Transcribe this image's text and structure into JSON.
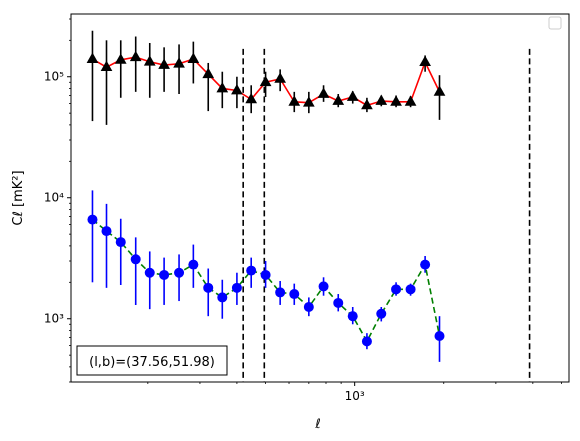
{
  "chart_data": {
    "type": "line",
    "xlabel": "ℓ",
    "ylabel": "Cℓ  [mK²]",
    "xscale": "log",
    "yscale": "log",
    "xlim": [
      110,
      5300
    ],
    "ylim": [
      300,
      330000
    ],
    "xticks": [
      {
        "value": 1000,
        "label": "10³"
      }
    ],
    "yticks": [
      {
        "value": 1000,
        "label": "10³"
      },
      {
        "value": 10000,
        "label": "10⁴"
      },
      {
        "value": 100000,
        "label": "10⁵"
      }
    ],
    "grid": false,
    "legend": "top-right (empty)",
    "annotation": "(l,b)=(37.56,51.98)",
    "vlines": [
      420,
      495,
      3900
    ],
    "series": [
      {
        "marker": "triangle",
        "marker_color": "#000000",
        "line_color": "#ff0000",
        "linestyle": "solid",
        "errorbar_color": "#000000",
        "points": [
          {
            "x": 130,
            "y": 140000,
            "lo": 43000,
            "hi": 240000
          },
          {
            "x": 145,
            "y": 120000,
            "lo": 40000,
            "hi": 200000
          },
          {
            "x": 162,
            "y": 138000,
            "lo": 67000,
            "hi": 200000
          },
          {
            "x": 182,
            "y": 145000,
            "lo": 75000,
            "hi": 215000
          },
          {
            "x": 203,
            "y": 133000,
            "lo": 67000,
            "hi": 190000
          },
          {
            "x": 227,
            "y": 125000,
            "lo": 75000,
            "hi": 175000
          },
          {
            "x": 255,
            "y": 128000,
            "lo": 72000,
            "hi": 185000
          },
          {
            "x": 285,
            "y": 140000,
            "lo": 88000,
            "hi": 195000
          },
          {
            "x": 320,
            "y": 105000,
            "lo": 52000,
            "hi": 130000
          },
          {
            "x": 357,
            "y": 80000,
            "lo": 55000,
            "hi": 110000
          },
          {
            "x": 400,
            "y": 77000,
            "lo": 55000,
            "hi": 100000
          },
          {
            "x": 447,
            "y": 65000,
            "lo": 50000,
            "hi": 85000
          },
          {
            "x": 500,
            "y": 90000,
            "lo": 68000,
            "hi": 110000
          },
          {
            "x": 560,
            "y": 96000,
            "lo": 76000,
            "hi": 115000
          },
          {
            "x": 625,
            "y": 62000,
            "lo": 51000,
            "hi": 75000
          },
          {
            "x": 700,
            "y": 61000,
            "lo": 50000,
            "hi": 75000
          },
          {
            "x": 785,
            "y": 72000,
            "lo": 62000,
            "hi": 85000
          },
          {
            "x": 880,
            "y": 63000,
            "lo": 56000,
            "hi": 72000
          },
          {
            "x": 985,
            "y": 68000,
            "lo": 60000,
            "hi": 76000
          },
          {
            "x": 1100,
            "y": 58000,
            "lo": 51000,
            "hi": 67000
          },
          {
            "x": 1230,
            "y": 63000,
            "lo": 57000,
            "hi": 70000
          },
          {
            "x": 1380,
            "y": 62000,
            "lo": 56000,
            "hi": 70000
          },
          {
            "x": 1545,
            "y": 62000,
            "lo": 56000,
            "hi": 69000
          },
          {
            "x": 1730,
            "y": 132000,
            "lo": 110000,
            "hi": 150000
          },
          {
            "x": 1935,
            "y": 75000,
            "lo": 44000,
            "hi": 103000
          }
        ]
      },
      {
        "marker": "circle",
        "marker_color": "#0000ff",
        "line_color": "#008000",
        "linestyle": "dashed",
        "errorbar_color": "#0000ff",
        "points": [
          {
            "x": 130,
            "y": 6600,
            "lo": 2000,
            "hi": 11500
          },
          {
            "x": 145,
            "y": 5300,
            "lo": 1800,
            "hi": 8900
          },
          {
            "x": 162,
            "y": 4300,
            "lo": 1900,
            "hi": 6700
          },
          {
            "x": 182,
            "y": 3100,
            "lo": 1300,
            "hi": 4700
          },
          {
            "x": 203,
            "y": 2400,
            "lo": 1200,
            "hi": 3600
          },
          {
            "x": 227,
            "y": 2300,
            "lo": 1300,
            "hi": 3200
          },
          {
            "x": 255,
            "y": 2400,
            "lo": 1400,
            "hi": 3400
          },
          {
            "x": 285,
            "y": 2800,
            "lo": 1800,
            "hi": 4100
          },
          {
            "x": 320,
            "y": 1800,
            "lo": 1050,
            "hi": 2600
          },
          {
            "x": 357,
            "y": 1500,
            "lo": 1000,
            "hi": 2100
          },
          {
            "x": 400,
            "y": 1800,
            "lo": 1300,
            "hi": 2400
          },
          {
            "x": 447,
            "y": 2500,
            "lo": 1800,
            "hi": 3200
          },
          {
            "x": 500,
            "y": 2300,
            "lo": 1800,
            "hi": 3000
          },
          {
            "x": 560,
            "y": 1650,
            "lo": 1300,
            "hi": 2050
          },
          {
            "x": 625,
            "y": 1600,
            "lo": 1300,
            "hi": 1950
          },
          {
            "x": 700,
            "y": 1250,
            "lo": 1050,
            "hi": 1500
          },
          {
            "x": 785,
            "y": 1850,
            "lo": 1550,
            "hi": 2200
          },
          {
            "x": 880,
            "y": 1350,
            "lo": 1150,
            "hi": 1600
          },
          {
            "x": 985,
            "y": 1050,
            "lo": 900,
            "hi": 1250
          },
          {
            "x": 1100,
            "y": 650,
            "lo": 560,
            "hi": 760
          },
          {
            "x": 1230,
            "y": 1100,
            "lo": 950,
            "hi": 1250
          },
          {
            "x": 1380,
            "y": 1750,
            "lo": 1550,
            "hi": 2000
          },
          {
            "x": 1545,
            "y": 1750,
            "lo": 1550,
            "hi": 1950
          },
          {
            "x": 1730,
            "y": 2800,
            "lo": 2400,
            "hi": 3300
          },
          {
            "x": 1935,
            "y": 720,
            "lo": 440,
            "hi": 1050
          }
        ]
      }
    ]
  }
}
